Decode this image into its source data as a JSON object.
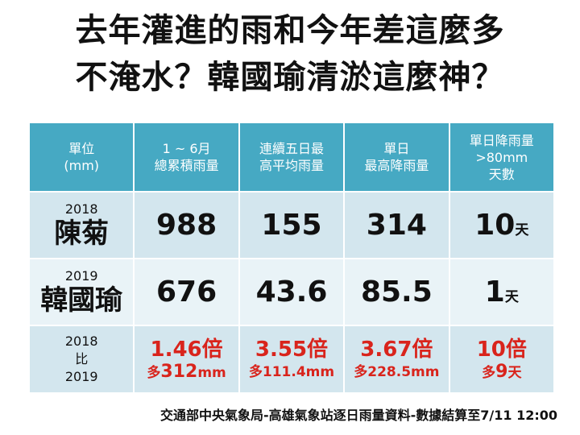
{
  "title": {
    "line1": "去年灌進的雨和今年差這麼多",
    "line2": "不淹水？韓國瑜清淤這麼神？"
  },
  "header": {
    "col0": [
      "單位",
      "(mm)"
    ],
    "col1": [
      "1 ~ 6月",
      "總累積雨量"
    ],
    "col2": [
      "連續五日最",
      "高平均雨量"
    ],
    "col3": [
      "單日",
      "最高降雨量"
    ],
    "col4": [
      "單日降雨量",
      ">80mm",
      "天數"
    ]
  },
  "rows": [
    {
      "year": "2018",
      "name": "陳菊",
      "v1": "988",
      "v2": "155",
      "v3": "314",
      "v4": "10",
      "v4_unit": "天"
    },
    {
      "year": "2019",
      "name": "韓國瑜",
      "v1": "676",
      "v2": "43.6",
      "v3": "85.5",
      "v4": "1",
      "v4_unit": "天"
    }
  ],
  "compare": {
    "label": [
      "2018",
      "比",
      "2019"
    ],
    "c1": {
      "ratio": "1.46倍",
      "more_prefix": "多",
      "more_value": "312",
      "more_unit": "mm"
    },
    "c2": {
      "ratio": "3.55倍",
      "more": "多111.4mm"
    },
    "c3": {
      "ratio": "3.67倍",
      "more": "多228.5mm"
    },
    "c4": {
      "ratio": "10倍",
      "more_prefix": "多",
      "more_value": "9",
      "more_unit": "天"
    }
  },
  "footer": "交通部中央氣象局-高雄氣象站逐日雨量資料-數據結算至7/11  12:00",
  "colors": {
    "header_bg": "#46a9c3",
    "row_dark": "#d3e6ee",
    "row_light": "#e9f3f7",
    "highlight": "#d9241c"
  }
}
